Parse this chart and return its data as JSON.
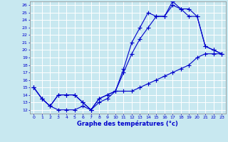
{
  "title": "Graphe des températures (°c)",
  "bg_color": "#c8e8f0",
  "line_color": "#0000cc",
  "grid_color": "#ffffff",
  "xlim": [
    -0.5,
    23.5
  ],
  "ylim": [
    11.5,
    26.5
  ],
  "xticks": [
    0,
    1,
    2,
    3,
    4,
    5,
    6,
    7,
    8,
    9,
    10,
    11,
    12,
    13,
    14,
    15,
    16,
    17,
    18,
    19,
    20,
    21,
    22,
    23
  ],
  "yticks": [
    12,
    13,
    14,
    15,
    16,
    17,
    18,
    19,
    20,
    21,
    22,
    23,
    24,
    25,
    26
  ],
  "line1_x": [
    0,
    1,
    2,
    3,
    4,
    5,
    6,
    7,
    8,
    9,
    10,
    11,
    12,
    13,
    14,
    15,
    16,
    17,
    18,
    19,
    20,
    21,
    22,
    23
  ],
  "line1_y": [
    15.0,
    13.5,
    12.5,
    12.0,
    12.0,
    12.0,
    12.5,
    12.0,
    13.0,
    13.5,
    14.5,
    14.5,
    14.5,
    15.0,
    15.5,
    16.0,
    16.5,
    17.0,
    17.5,
    18.0,
    19.0,
    19.5,
    19.5,
    19.5
  ],
  "line2_x": [
    0,
    1,
    2,
    3,
    4,
    5,
    6,
    7,
    8,
    9,
    10,
    11,
    12,
    13,
    14,
    15,
    16,
    17,
    18,
    19,
    20,
    21,
    22,
    23
  ],
  "line2_y": [
    15.0,
    13.5,
    12.5,
    14.0,
    14.0,
    14.0,
    13.0,
    12.0,
    13.5,
    14.0,
    14.5,
    17.0,
    19.5,
    21.5,
    23.0,
    24.5,
    24.5,
    26.5,
    25.5,
    25.5,
    24.5,
    20.5,
    20.0,
    19.5
  ],
  "line3_x": [
    0,
    1,
    2,
    3,
    4,
    5,
    6,
    7,
    8,
    9,
    10,
    11,
    12,
    13,
    14,
    15,
    16,
    17,
    18,
    19,
    20,
    21,
    22,
    23
  ],
  "line3_y": [
    15.0,
    13.5,
    12.5,
    14.0,
    14.0,
    14.0,
    13.0,
    12.0,
    13.5,
    14.0,
    14.5,
    17.5,
    21.0,
    23.0,
    25.0,
    24.5,
    24.5,
    26.0,
    25.5,
    24.5,
    24.5,
    20.5,
    20.0,
    19.5
  ]
}
